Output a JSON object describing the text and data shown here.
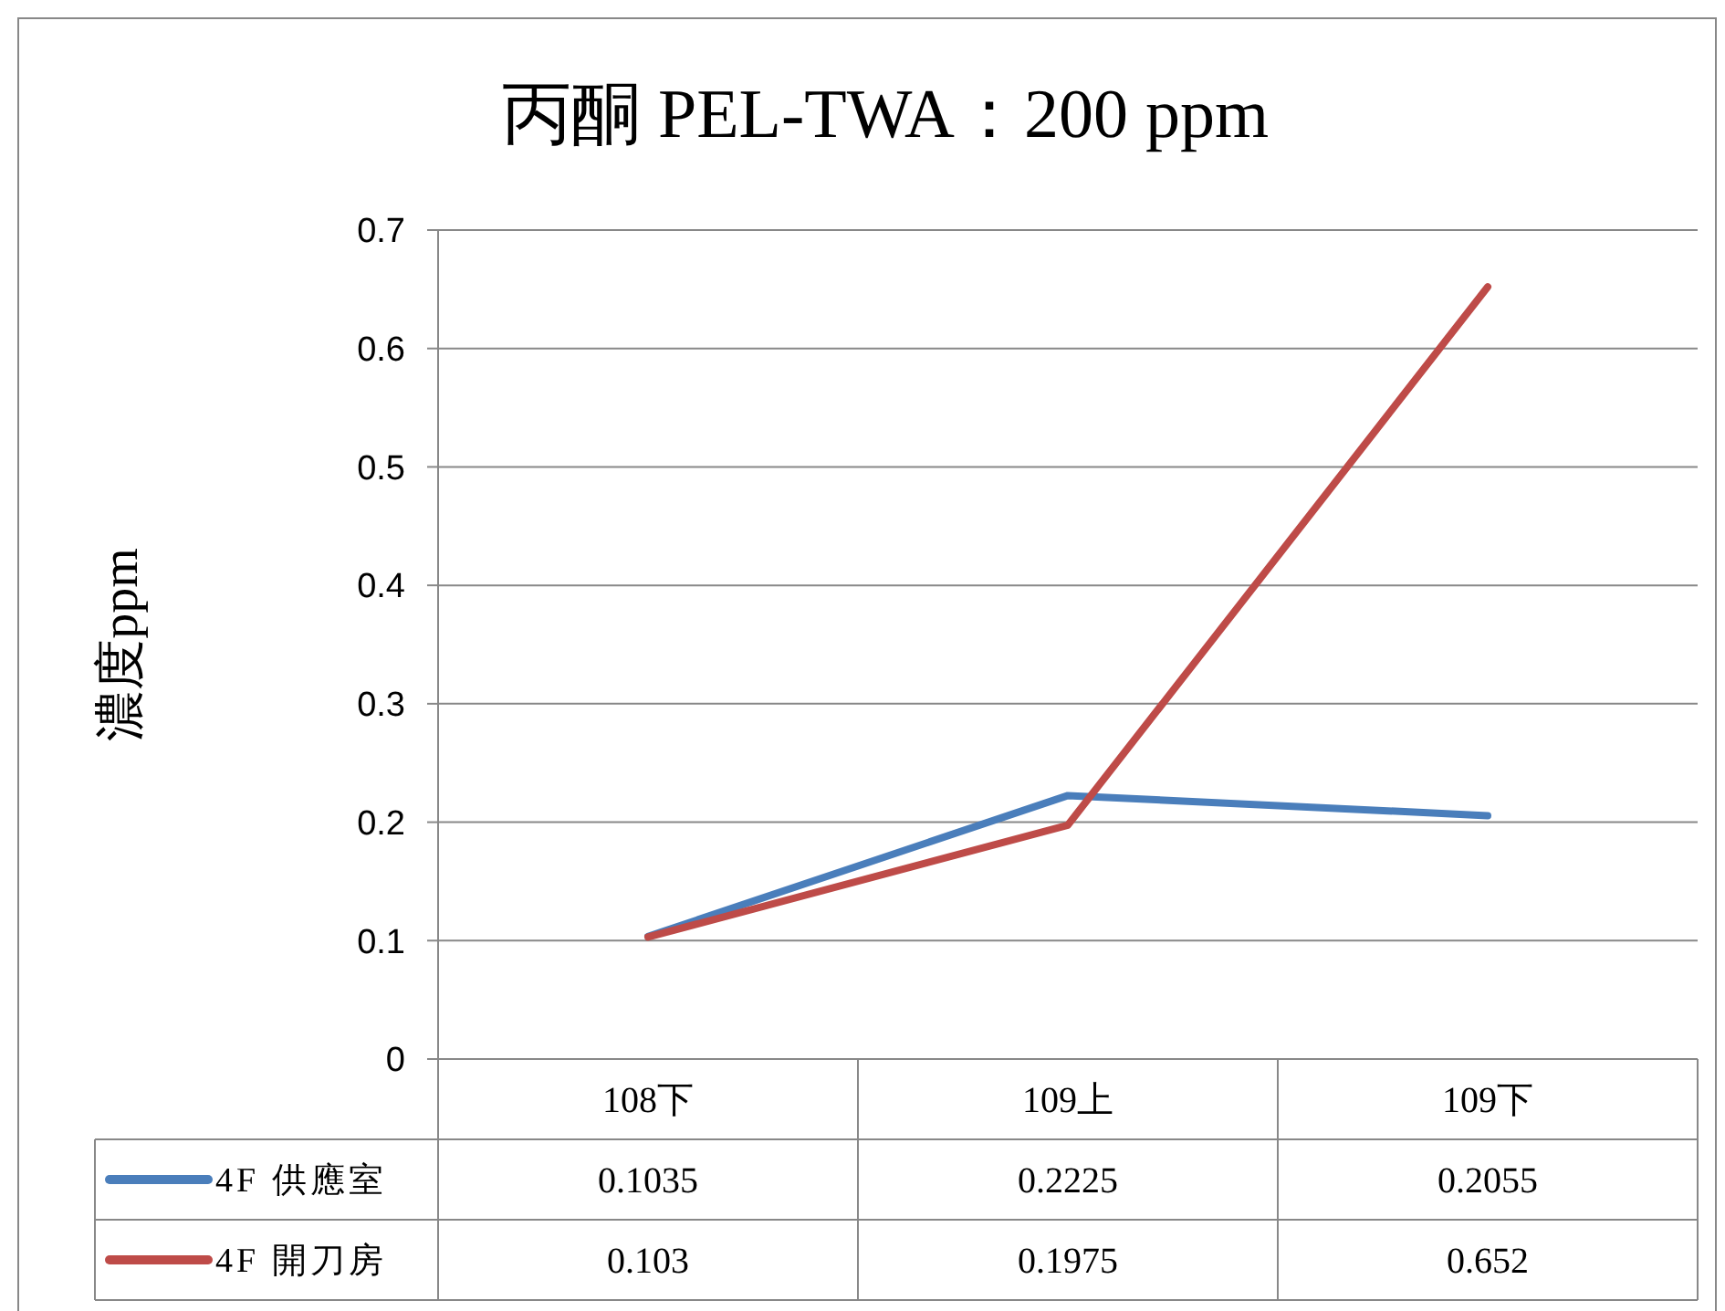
{
  "chart_data": {
    "type": "line",
    "title": "丙酮 PEL-TWA：200 ppm",
    "ylabel": "濃度ppm",
    "categories": [
      "108下",
      "109上",
      "109下"
    ],
    "series": [
      {
        "name": "4F 供應室",
        "color": "#4a7ebb",
        "values": [
          0.1035,
          0.2225,
          0.2055
        ]
      },
      {
        "name": "4F 開刀房",
        "color": "#be4b48",
        "values": [
          0.103,
          0.1975,
          0.652
        ]
      }
    ],
    "ylim": [
      0,
      0.7
    ],
    "yticks": [
      0,
      0.1,
      0.2,
      0.3,
      0.4,
      0.5,
      0.6,
      0.7
    ],
    "grid": "y",
    "legend": "bottom",
    "data_labels": true,
    "marker": "none",
    "line_style": "solid"
  }
}
